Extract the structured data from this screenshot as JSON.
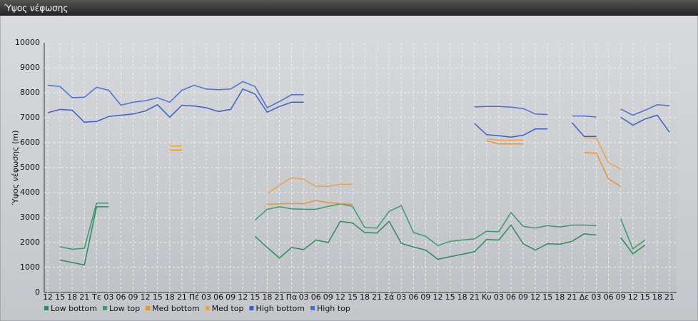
{
  "chart_data": {
    "type": "line",
    "title": "Ύψος νέφωσης",
    "y_label": "Ύψος νέφωσης (m)",
    "categories": [
      "12",
      "15",
      "18",
      "21",
      "Τε",
      "03",
      "06",
      "09",
      "12",
      "15",
      "18",
      "21",
      "Πέ",
      "03",
      "06",
      "09",
      "12",
      "15",
      "18",
      "21",
      "Πα",
      "03",
      "06",
      "09",
      "12",
      "15",
      "18",
      "21",
      "Σά",
      "03",
      "06",
      "09",
      "12",
      "15",
      "18",
      "21",
      "Κυ",
      "03",
      "06",
      "09",
      "12",
      "15",
      "18",
      "21",
      "Δε",
      "03",
      "06",
      "09",
      "12",
      "15",
      "18",
      "21"
    ],
    "ylim": [
      0,
      10000
    ],
    "yticks": [
      0,
      1000,
      2000,
      3000,
      4000,
      5000,
      6000,
      7000,
      8000,
      9000,
      10000
    ],
    "grid": true,
    "series": [
      {
        "name": "Low bottom",
        "color": "#2e8b57",
        "values": [
          null,
          1300,
          1200,
          1100,
          3430,
          3430,
          null,
          null,
          null,
          null,
          null,
          null,
          null,
          null,
          null,
          null,
          null,
          2250,
          1800,
          1380,
          1800,
          1720,
          2100,
          2000,
          2850,
          2780,
          2400,
          2380,
          2850,
          1970,
          1820,
          1700,
          1330,
          1430,
          1530,
          1630,
          2120,
          2100,
          2700,
          1950,
          1700,
          1950,
          1930,
          2050,
          2350,
          2300,
          null,
          2200,
          1550,
          1900,
          null,
          null
        ]
      },
      {
        "name": "Low top",
        "color": "#3a9a68",
        "values": [
          null,
          1830,
          1730,
          1770,
          3580,
          3580,
          null,
          null,
          null,
          null,
          null,
          null,
          null,
          null,
          null,
          null,
          null,
          2900,
          3330,
          3430,
          3350,
          3330,
          3330,
          3450,
          3550,
          3450,
          2600,
          2580,
          3250,
          3480,
          2400,
          2250,
          1880,
          2050,
          2100,
          2150,
          2450,
          2430,
          3200,
          2650,
          2580,
          2680,
          2620,
          2700,
          2700,
          2680,
          null,
          2950,
          1750,
          2100,
          null,
          null
        ]
      },
      {
        "name": "Med bottom",
        "color": "#e8952e",
        "values": [
          null,
          null,
          null,
          null,
          null,
          null,
          null,
          null,
          null,
          null,
          5700,
          5700,
          null,
          null,
          null,
          null,
          null,
          null,
          3530,
          3550,
          3560,
          3560,
          3680,
          3600,
          3560,
          3530,
          null,
          null,
          null,
          null,
          null,
          null,
          null,
          null,
          null,
          null,
          6080,
          5950,
          5950,
          5950,
          null,
          null,
          null,
          null,
          5600,
          5580,
          4550,
          4250,
          null,
          null,
          null,
          null
        ]
      },
      {
        "name": "Med top",
        "color": "#f0a040",
        "values": [
          null,
          null,
          null,
          null,
          null,
          null,
          null,
          null,
          null,
          null,
          5870,
          5870,
          null,
          null,
          null,
          null,
          null,
          null,
          3950,
          4300,
          4600,
          4530,
          4250,
          4250,
          4330,
          4330,
          null,
          null,
          null,
          null,
          null,
          null,
          null,
          null,
          null,
          null,
          6150,
          6100,
          6100,
          6100,
          null,
          null,
          null,
          null,
          6200,
          6180,
          5200,
          4950,
          null,
          null,
          null,
          null
        ]
      },
      {
        "name": "High bottom",
        "color": "#3a5fcd",
        "values": [
          7200,
          7330,
          7300,
          6820,
          6850,
          7050,
          7100,
          7150,
          7270,
          7520,
          7020,
          7500,
          7470,
          7400,
          7250,
          7330,
          8150,
          7950,
          7220,
          7450,
          7620,
          7620,
          null,
          null,
          null,
          null,
          null,
          null,
          null,
          null,
          null,
          null,
          null,
          null,
          null,
          6770,
          6320,
          6280,
          6220,
          6300,
          6550,
          6550,
          null,
          6800,
          6250,
          6250,
          null,
          7020,
          6700,
          6950,
          7100,
          6420
        ]
      },
      {
        "name": "High top",
        "color": "#4a6fd8",
        "values": [
          8300,
          8250,
          7800,
          7820,
          8220,
          8100,
          7500,
          7620,
          7680,
          7800,
          7620,
          8100,
          8300,
          8150,
          8120,
          8150,
          8450,
          8250,
          7400,
          7650,
          7920,
          7920,
          null,
          null,
          null,
          null,
          null,
          null,
          null,
          null,
          null,
          null,
          null,
          null,
          null,
          7430,
          7450,
          7450,
          7420,
          7370,
          7150,
          7130,
          null,
          7070,
          7070,
          7030,
          null,
          7350,
          7100,
          7300,
          7520,
          7480
        ]
      }
    ]
  }
}
